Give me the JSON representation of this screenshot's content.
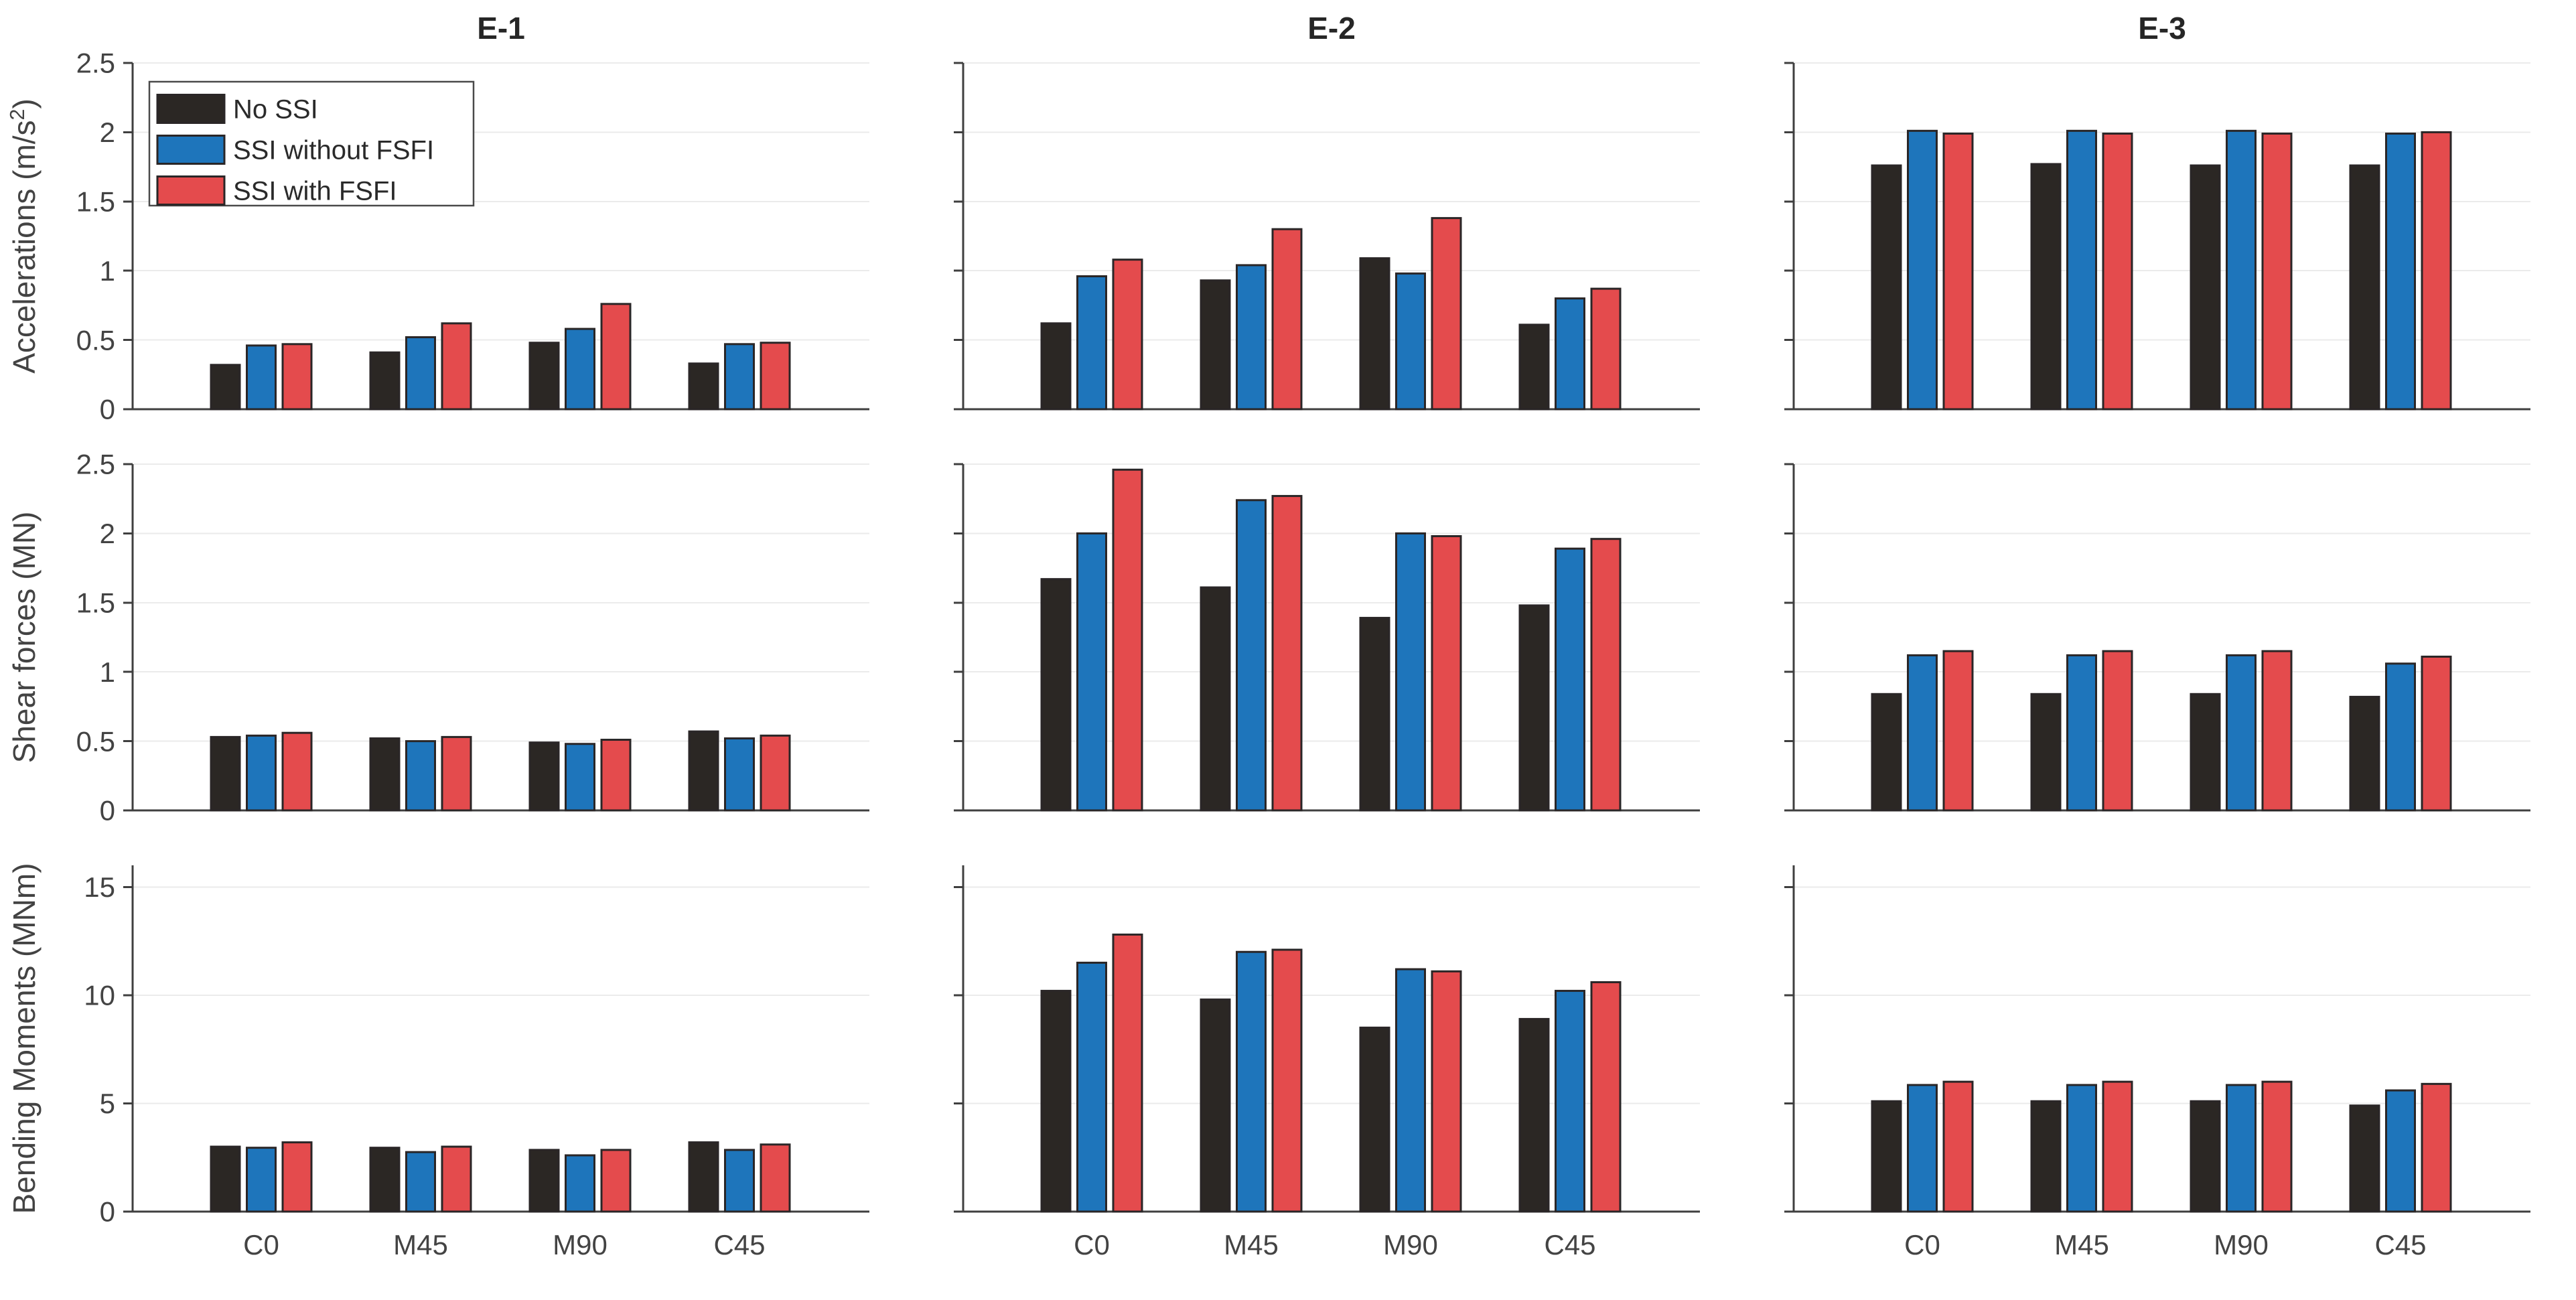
{
  "figure": {
    "background": "#ffffff",
    "col_titles": [
      "E-1",
      "E-2",
      "E-3"
    ],
    "categories": [
      "C0",
      "M45",
      "M90",
      "C45"
    ],
    "series_names": [
      "No SSI",
      "SSI without FSFI",
      "SSI with FSFI"
    ],
    "series_colors": [
      "#2b2724",
      "#1e75bb",
      "#e44b4d"
    ],
    "bar_edge_color": "#2a2627",
    "axis_color": "#3f3f3f",
    "grid_color": "#ebebeb",
    "tick_label_color": "#434343",
    "title_color": "#262626",
    "legend": {
      "items": [
        "No SSI",
        "SSI without FSFI",
        "SSI with FSFI"
      ],
      "border_color": "#4a4a4a",
      "background": "#ffffff"
    }
  },
  "chart_data": {
    "type": "bar",
    "grid": {
      "rows": 3,
      "cols": 3
    },
    "legend_position": "top-left of first subplot",
    "grid_lines": "horizontal at every y tick",
    "categories": [
      "C0",
      "M45",
      "M90",
      "C45"
    ],
    "series_names": [
      "No SSI",
      "SSI without FSFI",
      "SSI with FSFI"
    ],
    "rows": [
      {
        "ylabel": {
          "text": "Accelerations (m/s²)",
          "main": "Accelerations (m/s",
          "sup": "2",
          "post": ")"
        },
        "ylim": [
          0,
          2.5
        ],
        "yticks": [
          0,
          0.5,
          1,
          1.5,
          2,
          2.5
        ],
        "panels": [
          {
            "title": "E-1",
            "series": [
              {
                "name": "No SSI",
                "values": [
                  0.32,
                  0.41,
                  0.48,
                  0.33
                ]
              },
              {
                "name": "SSI without FSFI",
                "values": [
                  0.46,
                  0.52,
                  0.58,
                  0.47
                ]
              },
              {
                "name": "SSI with FSFI",
                "values": [
                  0.47,
                  0.62,
                  0.76,
                  0.48
                ]
              }
            ]
          },
          {
            "title": "E-2",
            "series": [
              {
                "name": "No SSI",
                "values": [
                  0.62,
                  0.93,
                  1.09,
                  0.61
                ]
              },
              {
                "name": "SSI without FSFI",
                "values": [
                  0.96,
                  1.04,
                  0.98,
                  0.8
                ]
              },
              {
                "name": "SSI with FSFI",
                "values": [
                  1.08,
                  1.3,
                  1.38,
                  0.87
                ]
              }
            ]
          },
          {
            "title": "E-3",
            "series": [
              {
                "name": "No SSI",
                "values": [
                  1.76,
                  1.77,
                  1.76,
                  1.76
                ]
              },
              {
                "name": "SSI without FSFI",
                "values": [
                  2.01,
                  2.01,
                  2.01,
                  1.99
                ]
              },
              {
                "name": "SSI with FSFI",
                "values": [
                  1.99,
                  1.99,
                  1.99,
                  2.0
                ]
              }
            ]
          }
        ]
      },
      {
        "ylabel": {
          "text": "Shear forces (MN)",
          "main": "Shear forces (MN)"
        },
        "ylim": [
          0,
          2.5
        ],
        "yticks": [
          0,
          0.5,
          1,
          1.5,
          2,
          2.5
        ],
        "panels": [
          {
            "title": "E-1",
            "series": [
              {
                "name": "No SSI",
                "values": [
                  0.53,
                  0.52,
                  0.49,
                  0.57
                ]
              },
              {
                "name": "SSI without FSFI",
                "values": [
                  0.54,
                  0.5,
                  0.48,
                  0.52
                ]
              },
              {
                "name": "SSI with FSFI",
                "values": [
                  0.56,
                  0.53,
                  0.51,
                  0.54
                ]
              }
            ]
          },
          {
            "title": "E-2",
            "series": [
              {
                "name": "No SSI",
                "values": [
                  1.67,
                  1.61,
                  1.39,
                  1.48
                ]
              },
              {
                "name": "SSI without FSFI",
                "values": [
                  2.0,
                  2.24,
                  2.0,
                  1.89
                ]
              },
              {
                "name": "SSI with FSFI",
                "values": [
                  2.46,
                  2.27,
                  1.98,
                  1.96
                ]
              }
            ]
          },
          {
            "title": "E-3",
            "series": [
              {
                "name": "No SSI",
                "values": [
                  0.84,
                  0.84,
                  0.84,
                  0.82
                ]
              },
              {
                "name": "SSI without FSFI",
                "values": [
                  1.12,
                  1.12,
                  1.12,
                  1.06
                ]
              },
              {
                "name": "SSI with FSFI",
                "values": [
                  1.15,
                  1.15,
                  1.15,
                  1.11
                ]
              }
            ]
          }
        ]
      },
      {
        "ylabel": {
          "text": "Bending Moments (MNm)",
          "main": "Bending Moments (MNm)"
        },
        "ylim": [
          0,
          16
        ],
        "yticks": [
          0,
          5,
          10,
          15
        ],
        "panels": [
          {
            "title": "E-1",
            "series": [
              {
                "name": "No SSI",
                "values": [
                  3.0,
                  2.95,
                  2.85,
                  3.2
                ]
              },
              {
                "name": "SSI without FSFI",
                "values": [
                  2.95,
                  2.75,
                  2.6,
                  2.85
                ]
              },
              {
                "name": "SSI with FSFI",
                "values": [
                  3.2,
                  3.0,
                  2.85,
                  3.1
                ]
              }
            ]
          },
          {
            "title": "E-2",
            "series": [
              {
                "name": "No SSI",
                "values": [
                  10.2,
                  9.8,
                  8.5,
                  8.9
                ]
              },
              {
                "name": "SSI without FSFI",
                "values": [
                  11.5,
                  12.0,
                  11.2,
                  10.2
                ]
              },
              {
                "name": "SSI with FSFI",
                "values": [
                  12.8,
                  12.1,
                  11.1,
                  10.6
                ]
              }
            ]
          },
          {
            "title": "E-3",
            "series": [
              {
                "name": "No SSI",
                "values": [
                  5.1,
                  5.1,
                  5.1,
                  4.9
                ]
              },
              {
                "name": "SSI without FSFI",
                "values": [
                  5.85,
                  5.85,
                  5.85,
                  5.6
                ]
              },
              {
                "name": "SSI with FSFI",
                "values": [
                  6.0,
                  6.0,
                  6.0,
                  5.9
                ]
              }
            ]
          }
        ]
      }
    ]
  }
}
